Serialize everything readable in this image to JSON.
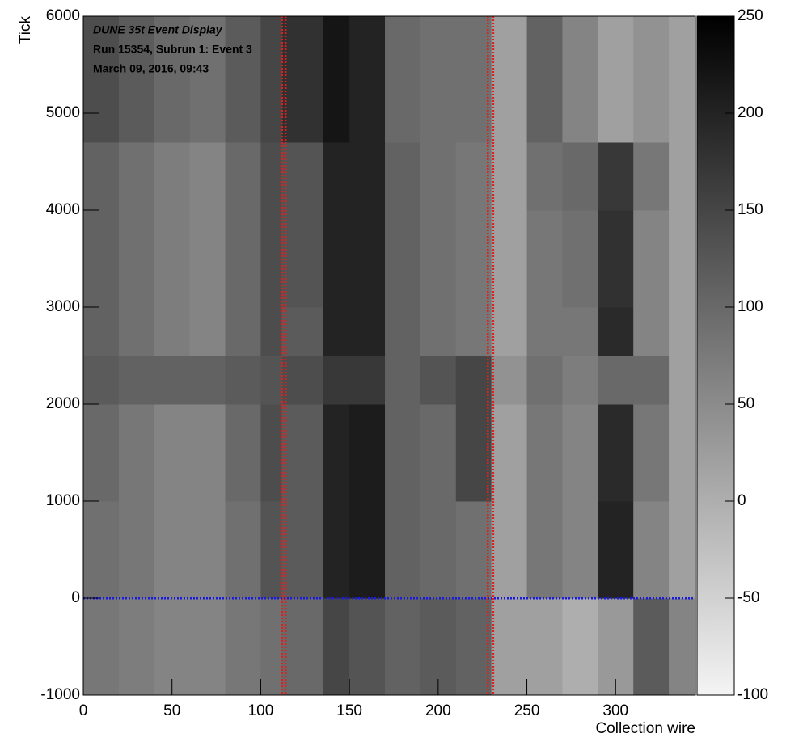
{
  "chart_data": {
    "type": "heatmap",
    "annotations": [
      "DUNE 35t Event Display",
      "Run 15354, Subrun 1: Event 3",
      "March 09, 2016, 09:43"
    ],
    "x_label": "Collection wire",
    "y_label": "Tick",
    "xbins": [
      0,
      20,
      40,
      60,
      80,
      100,
      112,
      135,
      150,
      170,
      190,
      210,
      230,
      250,
      270,
      290,
      310,
      330,
      345
    ],
    "ybins": [
      -1000,
      0,
      1000,
      2000,
      2500,
      3000,
      4000,
      4700,
      6000
    ],
    "z": [
      [
        80,
        70,
        60,
        60,
        80,
        90,
        100,
        150,
        130,
        110,
        120,
        110,
        20,
        20,
        0,
        30,
        120,
        60
      ],
      [
        90,
        80,
        60,
        60,
        90,
        130,
        120,
        200,
        210,
        110,
        100,
        90,
        20,
        80,
        60,
        200,
        60,
        20
      ],
      [
        100,
        80,
        60,
        60,
        100,
        140,
        120,
        200,
        210,
        110,
        100,
        150,
        20,
        80,
        60,
        190,
        80,
        20
      ],
      [
        120,
        110,
        110,
        110,
        120,
        130,
        140,
        170,
        170,
        110,
        130,
        150,
        40,
        90,
        70,
        100,
        100,
        20
      ],
      [
        110,
        90,
        70,
        60,
        100,
        140,
        120,
        200,
        200,
        110,
        90,
        80,
        20,
        80,
        80,
        190,
        60,
        20
      ],
      [
        110,
        90,
        70,
        60,
        100,
        140,
        130,
        200,
        200,
        110,
        90,
        80,
        20,
        80,
        90,
        180,
        60,
        20
      ],
      [
        110,
        90,
        70,
        60,
        100,
        140,
        130,
        200,
        200,
        110,
        90,
        80,
        20,
        90,
        100,
        170,
        80,
        20
      ],
      [
        140,
        120,
        100,
        90,
        120,
        150,
        180,
        220,
        200,
        100,
        90,
        90,
        20,
        110,
        60,
        20,
        40,
        20
      ]
    ],
    "xlim": [
      0,
      345
    ],
    "ylim": [
      -1000,
      6000
    ],
    "xticks": [
      0,
      50,
      100,
      150,
      200,
      250,
      300
    ],
    "yticks": [
      -1000,
      0,
      1000,
      2000,
      3000,
      4000,
      5000,
      6000
    ],
    "zlim": [
      -100,
      250
    ],
    "zticks": [
      -100,
      -50,
      0,
      50,
      100,
      150,
      200,
      250
    ],
    "colormap": [
      "#f4f4f4",
      "#000000"
    ],
    "vlines": [
      112,
      114,
      228,
      231
    ],
    "vline_color": "#e02020",
    "hlines": [
      0
    ],
    "hline_color": "#1a1ae0"
  }
}
